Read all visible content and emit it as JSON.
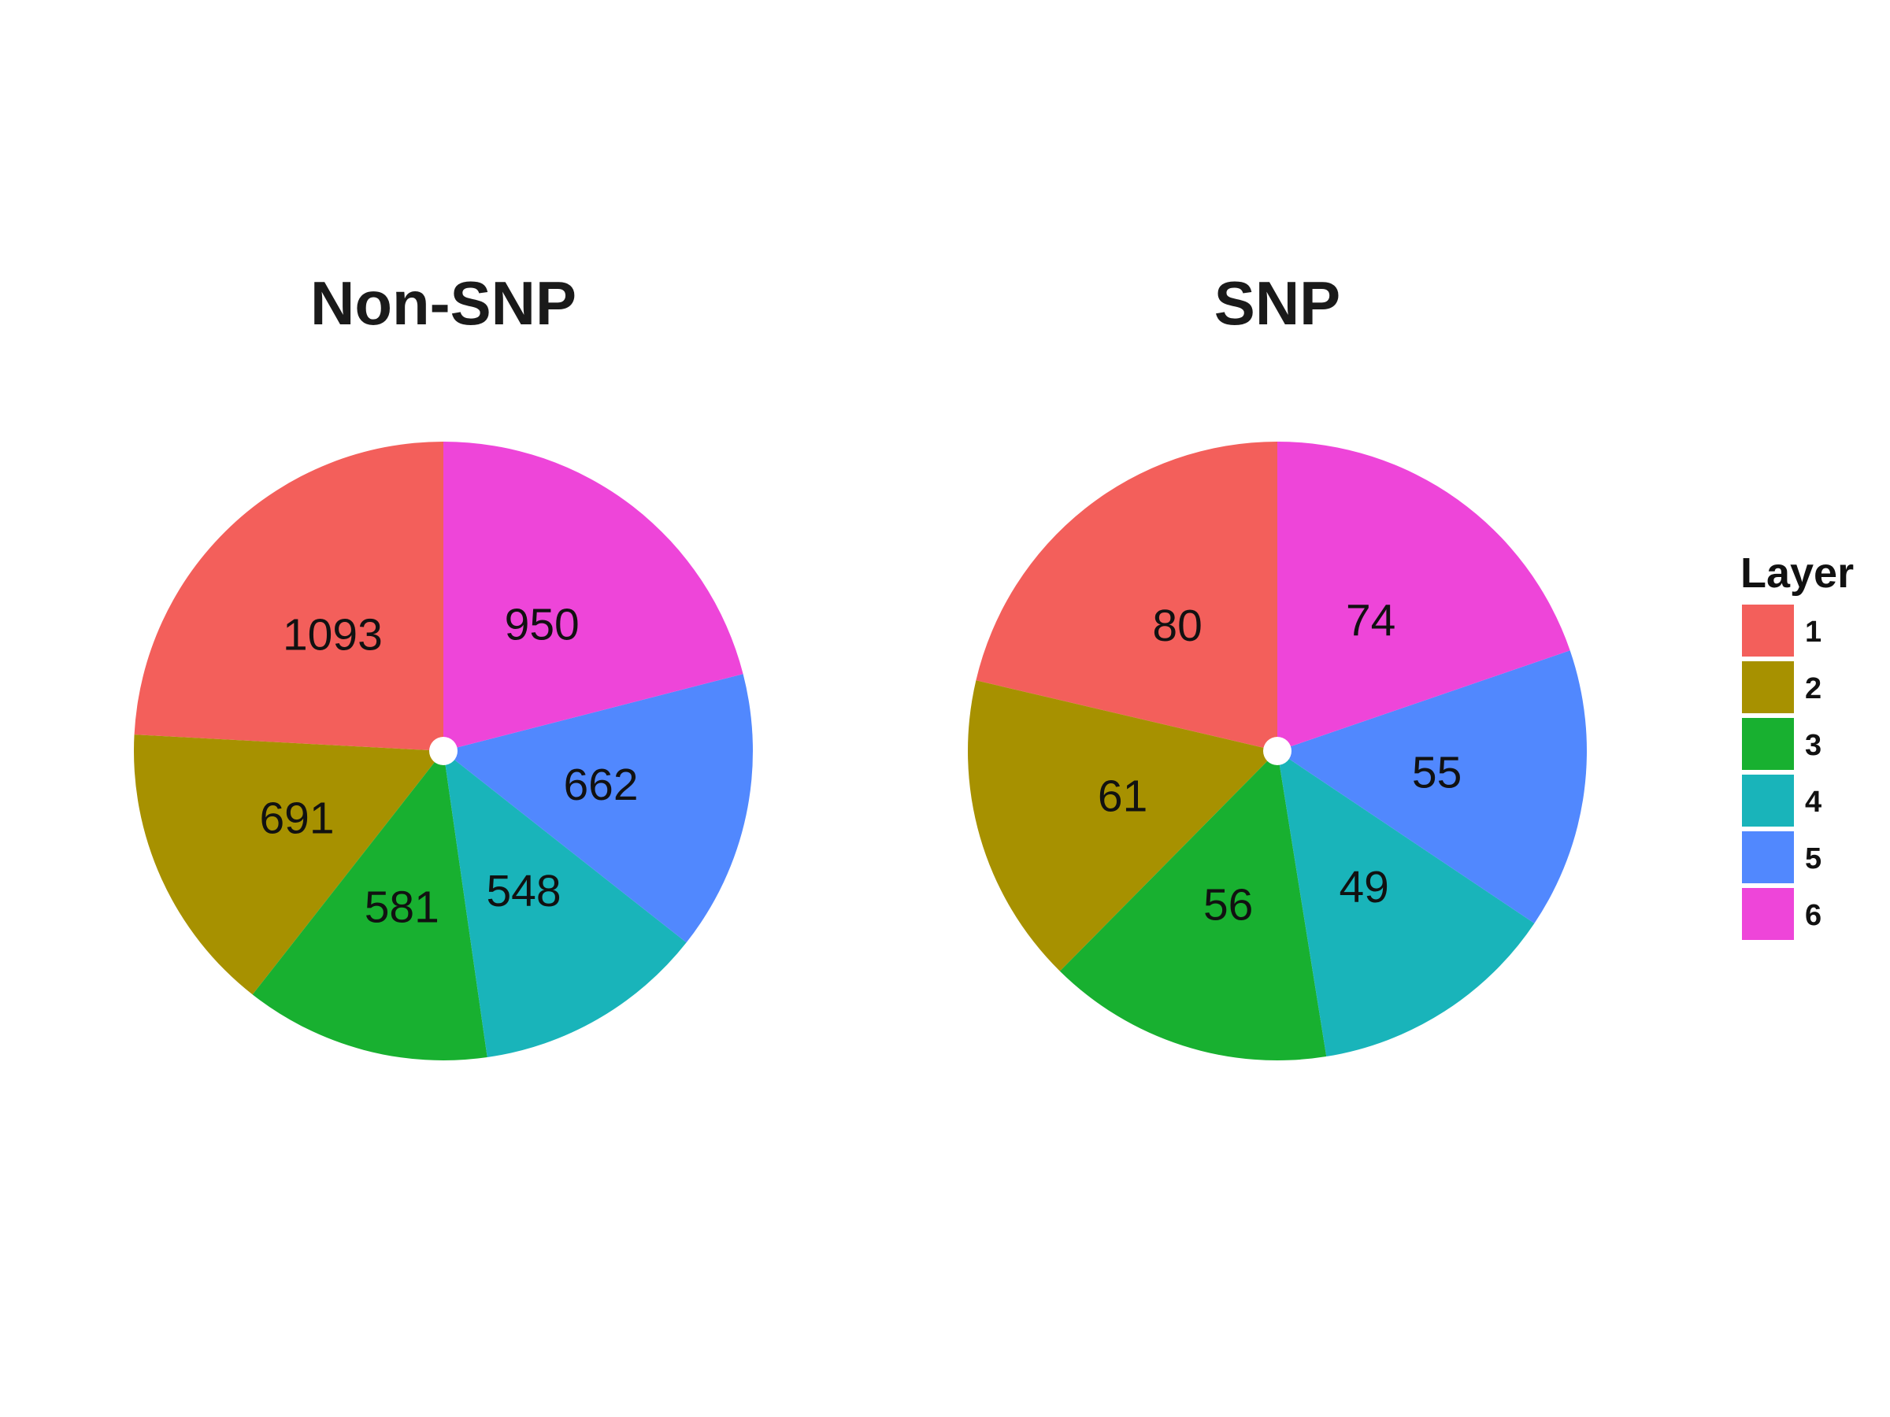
{
  "chart_data": [
    {
      "type": "pie",
      "title": "Non-SNP",
      "categories": [
        "1",
        "2",
        "3",
        "4",
        "5",
        "6"
      ],
      "values": [
        1093,
        691,
        581,
        548,
        662,
        950
      ]
    },
    {
      "type": "pie",
      "title": "SNP",
      "categories": [
        "1",
        "2",
        "3",
        "4",
        "5",
        "6"
      ],
      "values": [
        80,
        61,
        56,
        49,
        55,
        74
      ]
    }
  ],
  "legend": {
    "title": "Layer",
    "placement": "right",
    "items": [
      {
        "label": "1",
        "color": "#F35F5B"
      },
      {
        "label": "2",
        "color": "#A79100"
      },
      {
        "label": "3",
        "color": "#18B030"
      },
      {
        "label": "4",
        "color": "#19B4BA"
      },
      {
        "label": "5",
        "color": "#5188FE"
      },
      {
        "label": "6",
        "color": "#EE45D9"
      }
    ]
  }
}
